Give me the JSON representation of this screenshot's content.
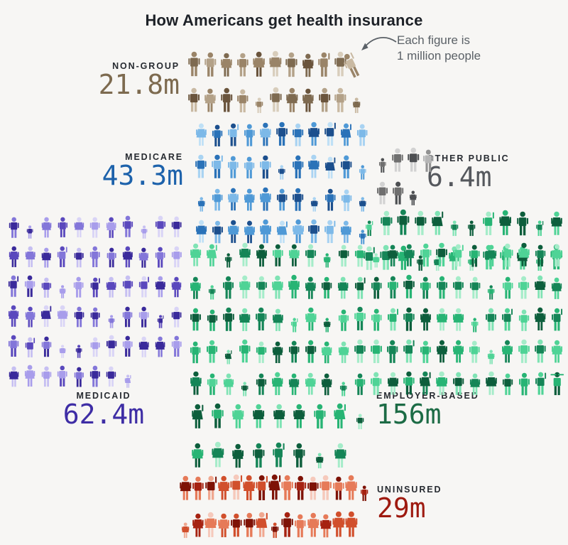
{
  "title": "How Americans get health insurance",
  "annotation": {
    "line1": "Each figure is",
    "line2": "1 million people"
  },
  "background": "#f7f6f4",
  "chart_data": {
    "type": "pictogram",
    "title": "How Americans get health insurance",
    "unit_note": "Each figure is 1 million people",
    "categories": [
      "Non-group",
      "Medicare",
      "Other public",
      "Medicaid",
      "Employer-based",
      "Uninsured"
    ],
    "values": [
      21.8,
      43.3,
      6.4,
      62.4,
      156,
      29
    ],
    "value_labels": [
      "21.8m",
      "43.3m",
      "6.4m",
      "62.4m",
      "156m",
      "29m"
    ],
    "legend_position": "top-right",
    "grid": false
  },
  "sections": {
    "non_group": {
      "label": "NON-GROUP",
      "value": "21.8m",
      "millions": 21.8,
      "text_color": "#7d6a4f",
      "palette": [
        "#d8cdbb",
        "#c9b9a2",
        "#b3a188",
        "#9a8468",
        "#7e6a50",
        "#6a543c"
      ]
    },
    "medicare": {
      "label": "MEDICARE",
      "value": "43.3m",
      "millions": 43.3,
      "text_color": "#1d62ab",
      "palette": [
        "#bfe0f6",
        "#a9d3f2",
        "#7db9e8",
        "#4f99d6",
        "#2a72b8",
        "#1c4f8d"
      ]
    },
    "other_public": {
      "label": "OTHER PUBLIC",
      "value": "6.4m",
      "millions": 6.4,
      "text_color": "#55585d",
      "palette": [
        "#dedede",
        "#d2d2d2",
        "#b5b5b5",
        "#929292",
        "#6f6f6f",
        "#4d4f52"
      ]
    },
    "medicaid": {
      "label": "MEDICAID",
      "value": "62.4m",
      "millions": 62.4,
      "text_color": "#3e2da5",
      "palette": [
        "#d9d4f6",
        "#c6bff2",
        "#a89deb",
        "#8376d9",
        "#5a48bd",
        "#3a2a9b"
      ]
    },
    "employer": {
      "label": "EMPLOYER-BASED",
      "value": "156m",
      "millions": 156,
      "text_color": "#1c6b45",
      "palette": [
        "#a5ecc9",
        "#7fe3b4",
        "#4fd396",
        "#27b474",
        "#158557",
        "#0d5e3c"
      ]
    },
    "uninsured": {
      "label": "UNINSURED",
      "value": "29m",
      "millions": 29,
      "text_color": "#9e1a10",
      "palette": [
        "#f6c9bb",
        "#f0a78f",
        "#e67a58",
        "#d14f2c",
        "#a62211",
        "#7e1205"
      ]
    }
  }
}
